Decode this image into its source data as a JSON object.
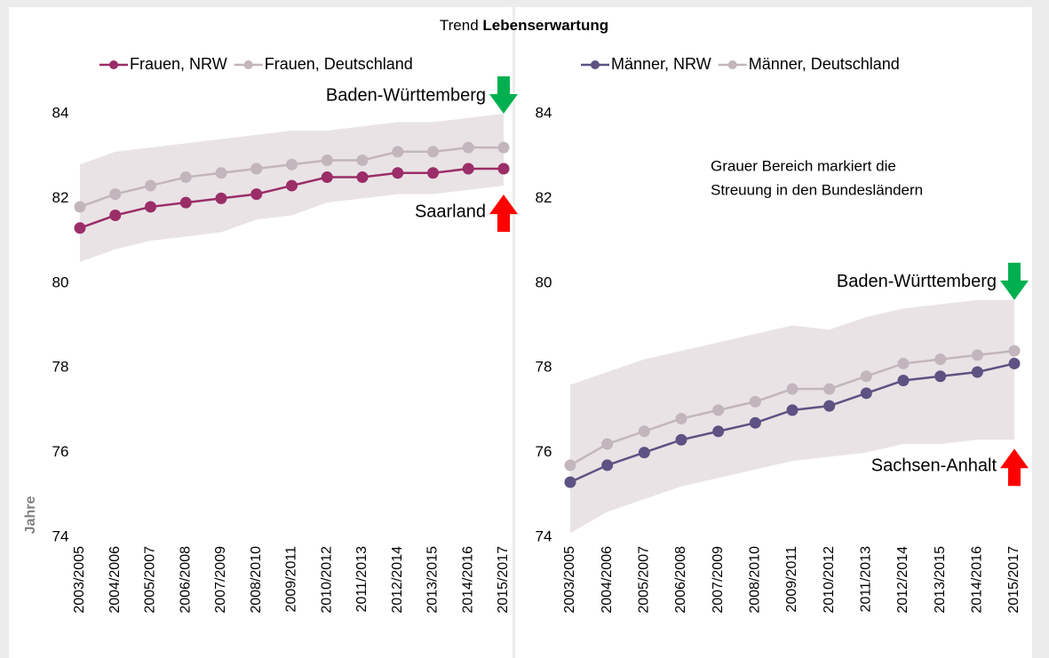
{
  "title": {
    "text": "Trend",
    "bold": "Lebenserwartung"
  },
  "chart_data": [
    {
      "type": "line",
      "y_label": "Jahre",
      "categories": [
        "2003/2005",
        "2004/2006",
        "2005/2007",
        "2006/2008",
        "2007/2009",
        "2008/2010",
        "2009/2011",
        "2010/2012",
        "2011/2013",
        "2012/2014",
        "2013/2015",
        "2014/2016",
        "2015/2017"
      ],
      "series": [
        {
          "name": "Frauen, NRW",
          "color": "#9b2d68",
          "values": [
            81.3,
            81.6,
            81.8,
            81.9,
            82.0,
            82.1,
            82.3,
            82.5,
            82.5,
            82.6,
            82.6,
            82.7,
            82.7
          ]
        },
        {
          "name": "Frauen, Deutschland",
          "color": "#c3b5bc",
          "values": [
            81.8,
            82.1,
            82.3,
            82.5,
            82.6,
            82.7,
            82.8,
            82.9,
            82.9,
            83.1,
            83.1,
            83.2,
            83.2
          ]
        }
      ],
      "band": {
        "color": "#e9e3e6",
        "lower": [
          80.5,
          80.8,
          81.0,
          81.1,
          81.2,
          81.5,
          81.6,
          81.9,
          82.0,
          82.1,
          82.1,
          82.2,
          82.3
        ],
        "upper": [
          82.8,
          83.1,
          83.2,
          83.3,
          83.4,
          83.5,
          83.6,
          83.6,
          83.7,
          83.8,
          83.8,
          83.9,
          84.0
        ]
      },
      "annotations": [
        {
          "text": "Baden-Württemberg",
          "direction": "down",
          "color": "#00b050"
        },
        {
          "text": "Saarland",
          "direction": "up",
          "color": "#ff0000"
        }
      ],
      "ylim": [
        74,
        84
      ],
      "yticks": [
        74,
        76,
        78,
        80,
        82,
        84
      ]
    },
    {
      "type": "line",
      "categories": [
        "2003/2005",
        "2004/2006",
        "2005/2007",
        "2006/2008",
        "2007/2009",
        "2008/2010",
        "2009/2011",
        "2010/2012",
        "2011/2013",
        "2012/2014",
        "2013/2015",
        "2014/2016",
        "2015/2017"
      ],
      "series": [
        {
          "name": "Männer, NRW",
          "color": "#5e5283",
          "values": [
            75.3,
            75.7,
            76.0,
            76.3,
            76.5,
            76.7,
            77.0,
            77.1,
            77.4,
            77.7,
            77.8,
            77.9,
            78.1
          ]
        },
        {
          "name": "Männer, Deutschland",
          "color": "#c3b5bc",
          "values": [
            75.7,
            76.2,
            76.5,
            76.8,
            77.0,
            77.2,
            77.5,
            77.5,
            77.8,
            78.1,
            78.2,
            78.3,
            78.4
          ]
        }
      ],
      "band": {
        "color": "#e9e3e6",
        "lower": [
          74.1,
          74.6,
          74.9,
          75.2,
          75.4,
          75.6,
          75.8,
          75.9,
          76.0,
          76.2,
          76.2,
          76.3,
          76.3
        ],
        "upper": [
          77.6,
          77.9,
          78.2,
          78.4,
          78.6,
          78.8,
          79.0,
          78.9,
          79.2,
          79.4,
          79.5,
          79.6,
          79.6
        ]
      },
      "annotations": [
        {
          "text": "Baden-Württemberg",
          "direction": "down",
          "color": "#00b050"
        },
        {
          "text": "Sachsen-Anhalt",
          "direction": "up",
          "color": "#ff0000"
        }
      ],
      "note": [
        "Grauer Bereich markiert die",
        "Streuung in den Bundesländern"
      ],
      "ylim": [
        74,
        84
      ],
      "yticks": [
        74,
        76,
        78,
        80,
        82,
        84
      ]
    }
  ]
}
